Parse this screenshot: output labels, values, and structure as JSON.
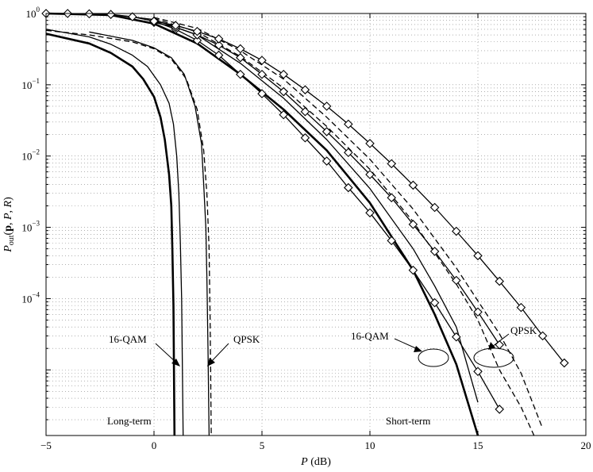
{
  "chart_data": {
    "type": "line",
    "xlabel": "P (dB)",
    "ylabel": "P_out(p, P, R)",
    "xlim": [
      -5,
      20
    ],
    "ylim": [
      1.2e-06,
      1
    ],
    "yscale": "log",
    "grid": true,
    "x_ticks": [
      "−5",
      "0",
      "5",
      "10",
      "15",
      "20"
    ],
    "y_ticks": [
      {
        "base": "10",
        "exp": "0",
        "value": 1
      },
      {
        "base": "10",
        "exp": "−1",
        "value": 0.1
      },
      {
        "base": "10",
        "exp": "−2",
        "value": 0.01
      },
      {
        "base": "10",
        "exp": "−3",
        "value": 0.001
      },
      {
        "base": "10",
        "exp": "−4",
        "value": 0.0001
      }
    ],
    "annotations": {
      "qam_long": "16-QAM",
      "qpsk_long": "QPSK",
      "qam_short": "16-QAM",
      "qpsk_short": "QPSK",
      "long_term": "Long-term",
      "short_term": "Short-term"
    },
    "series": [
      {
        "style": "solid-thick",
        "marker": "none",
        "x": [
          -5,
          -3,
          -2,
          -1,
          -0.5,
          0,
          0.3,
          0.5,
          0.7,
          0.8,
          0.85,
          0.9,
          0.95
        ],
        "y": [
          0.52,
          0.38,
          0.28,
          0.18,
          0.12,
          0.068,
          0.035,
          0.017,
          0.0055,
          0.002,
          0.0005,
          8e-05,
          1.2e-06
        ]
      },
      {
        "style": "solid-thin",
        "marker": "none",
        "x": [
          -5,
          -3,
          -2,
          -1,
          -0.3,
          0.3,
          0.7,
          0.9,
          1.05,
          1.15,
          1.22,
          1.28,
          1.35
        ],
        "y": [
          0.6,
          0.47,
          0.37,
          0.26,
          0.18,
          0.1,
          0.055,
          0.028,
          0.01,
          0.003,
          0.0006,
          0.0001,
          1.2e-06
        ]
      },
      {
        "style": "solid-thin",
        "marker": "none",
        "x": [
          -3,
          -1,
          0,
          0.8,
          1.4,
          1.9,
          2.2,
          2.3,
          2.4,
          2.45,
          2.5,
          2.55
        ],
        "y": [
          0.55,
          0.42,
          0.33,
          0.24,
          0.14,
          0.05,
          0.015,
          0.004,
          0.001,
          0.0002,
          2e-05,
          1.2e-06
        ]
      },
      {
        "style": "dashed",
        "marker": "none",
        "x": [
          -5,
          -3,
          -1,
          0,
          0.8,
          1.5,
          2,
          2.3,
          2.45,
          2.55,
          2.6,
          2.65
        ],
        "y": [
          0.58,
          0.5,
          0.4,
          0.32,
          0.23,
          0.12,
          0.045,
          0.012,
          0.003,
          0.0005,
          5e-05,
          1.2e-06
        ]
      },
      {
        "style": "solid-thick",
        "marker": "none",
        "x": [
          -5,
          -2,
          0,
          2,
          4,
          6,
          8,
          10,
          12,
          13,
          14,
          15
        ],
        "y": [
          1,
          0.95,
          0.72,
          0.38,
          0.14,
          0.045,
          0.012,
          0.0022,
          0.00025,
          6e-05,
          1.2e-05,
          1.2e-06
        ]
      },
      {
        "style": "solid-thin",
        "marker": "none",
        "x": [
          -5,
          -2,
          0,
          2,
          4,
          6,
          8,
          10,
          12,
          13,
          14,
          15
        ],
        "y": [
          1,
          0.97,
          0.82,
          0.5,
          0.2,
          0.065,
          0.017,
          0.0035,
          0.0005,
          0.00015,
          4e-05,
          3.5e-06
        ]
      },
      {
        "style": "dashed",
        "marker": "none",
        "x": [
          0,
          2,
          4,
          6,
          8,
          10,
          12,
          14,
          15,
          16,
          17,
          17.6
        ],
        "y": [
          0.85,
          0.55,
          0.25,
          0.09,
          0.026,
          0.0065,
          0.0012,
          0.00016,
          5e-05,
          1e-05,
          3e-06,
          1.2e-06
        ]
      },
      {
        "style": "dashed",
        "marker": "none",
        "x": [
          0,
          2,
          4,
          6,
          8,
          10,
          12,
          14,
          16,
          17,
          18
        ],
        "y": [
          0.88,
          0.62,
          0.3,
          0.12,
          0.035,
          0.009,
          0.0018,
          0.00027,
          3.2e-05,
          9e-06,
          1.5e-06
        ]
      },
      {
        "style": "solid-thin",
        "marker": "diamond",
        "x": [
          -5,
          -4,
          -3,
          -2,
          -1,
          0,
          1,
          2,
          3,
          4,
          5,
          6,
          7,
          8,
          9,
          10,
          11,
          12,
          13,
          14,
          15,
          16
        ],
        "y": [
          1,
          1,
          0.99,
          0.97,
          0.9,
          0.78,
          0.6,
          0.42,
          0.26,
          0.14,
          0.075,
          0.038,
          0.018,
          0.0085,
          0.0036,
          0.0016,
          0.00065,
          0.00025,
          8.75e-05,
          2.9e-05,
          9.5e-06,
          2.8e-06
        ]
      },
      {
        "style": "solid-thin",
        "marker": "diamond",
        "x": [
          0,
          1,
          2,
          3,
          4,
          5,
          6,
          7,
          8,
          9,
          10,
          11,
          12,
          13,
          14,
          15,
          16
        ],
        "y": [
          0.75,
          0.64,
          0.5,
          0.36,
          0.24,
          0.14,
          0.08,
          0.042,
          0.022,
          0.0112,
          0.0055,
          0.0026,
          0.0011,
          0.00046,
          0.00018,
          6.5e-05,
          2.25e-05
        ]
      },
      {
        "style": "solid-thin",
        "marker": "diamond",
        "x": [
          0,
          1,
          2,
          3,
          4,
          5,
          6,
          7,
          8,
          9,
          10,
          11,
          12,
          13,
          14,
          15,
          16,
          17,
          18,
          19
        ],
        "y": [
          0.78,
          0.68,
          0.56,
          0.44,
          0.32,
          0.22,
          0.14,
          0.085,
          0.05,
          0.028,
          0.015,
          0.0078,
          0.0039,
          0.0019,
          0.00088,
          0.0004,
          0.000175,
          7.5e-05,
          3e-05,
          1.25e-05
        ]
      }
    ]
  }
}
